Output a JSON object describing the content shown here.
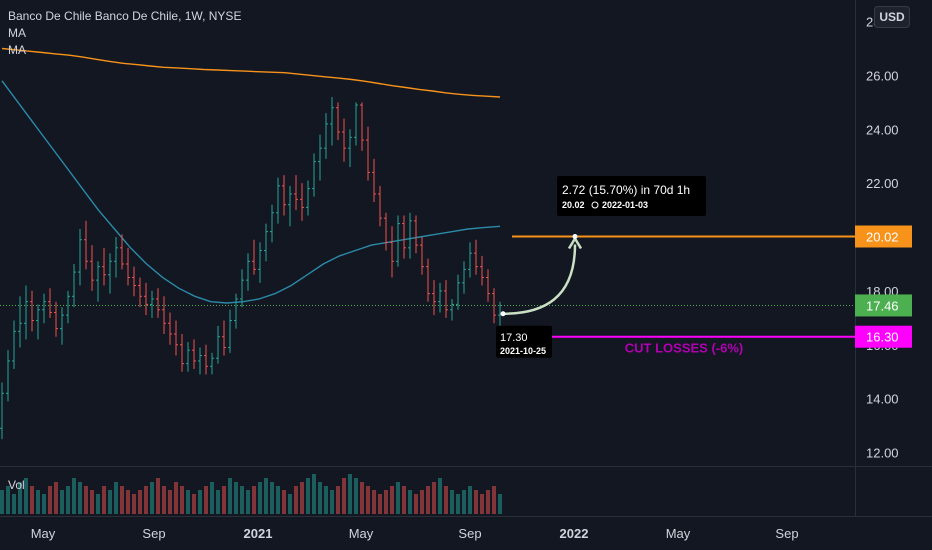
{
  "legend": {
    "title": "Banco De Chile Banco De Chile, 1W, NYSE",
    "ma1": "MA",
    "ma2": "MA"
  },
  "currency_button": "USD",
  "volume_label": "Vol",
  "colors": {
    "background": "#131722",
    "up": "#26a69a",
    "down": "#ef5350",
    "ma_long": "#f7931a",
    "ma_short": "#2a8aa8",
    "target": "#f7931a",
    "stop": "#ff00ff",
    "current": "#4caf50"
  },
  "chart_data": {
    "type": "candlestick",
    "y_axis": {
      "ylim": [
        11.5,
        28.8
      ],
      "ticks": [
        "12.00",
        "14.00",
        "16.00",
        "18.00",
        "20.00",
        "22.00",
        "24.00",
        "26.00",
        "28.00"
      ]
    },
    "x_axis": {
      "ticks": [
        {
          "label": "May",
          "bold": false
        },
        {
          "label": "Sep",
          "bold": false
        },
        {
          "label": "2021",
          "bold": true
        },
        {
          "label": "May",
          "bold": false
        },
        {
          "label": "Sep",
          "bold": false
        },
        {
          "label": "2022",
          "bold": true
        },
        {
          "label": "May",
          "bold": false
        },
        {
          "label": "Sep",
          "bold": false
        }
      ]
    },
    "candles_ohlc": [
      [
        12.9,
        14.6,
        12.5,
        14.2
      ],
      [
        14.2,
        15.8,
        13.9,
        15.4
      ],
      [
        15.4,
        16.9,
        15.1,
        16.5
      ],
      [
        16.5,
        17.8,
        15.9,
        16.8
      ],
      [
        16.8,
        18.2,
        16.2,
        17.6
      ],
      [
        17.6,
        18.0,
        16.5,
        16.9
      ],
      [
        16.9,
        17.5,
        16.2,
        17.3
      ],
      [
        17.3,
        17.9,
        16.8,
        17.6
      ],
      [
        17.6,
        18.1,
        17.0,
        17.2
      ],
      [
        17.2,
        17.6,
        16.3,
        16.6
      ],
      [
        16.6,
        17.4,
        16.0,
        17.1
      ],
      [
        17.1,
        18.0,
        16.8,
        17.8
      ],
      [
        17.8,
        19.0,
        17.4,
        18.7
      ],
      [
        18.7,
        20.3,
        18.2,
        19.9
      ],
      [
        19.9,
        20.6,
        18.8,
        19.1
      ],
      [
        19.1,
        19.7,
        18.0,
        18.4
      ],
      [
        18.4,
        19.1,
        17.6,
        18.9
      ],
      [
        18.9,
        19.6,
        18.2,
        18.6
      ],
      [
        18.6,
        19.4,
        17.9,
        19.1
      ],
      [
        19.1,
        20.0,
        18.5,
        19.6
      ],
      [
        19.6,
        20.1,
        18.8,
        19.0
      ],
      [
        19.0,
        19.6,
        18.2,
        18.5
      ],
      [
        18.5,
        18.9,
        17.8,
        18.2
      ],
      [
        18.2,
        18.5,
        17.4,
        17.8
      ],
      [
        17.8,
        18.3,
        17.1,
        17.5
      ],
      [
        17.5,
        18.0,
        17.0,
        17.7
      ],
      [
        17.7,
        18.1,
        17.0,
        17.3
      ],
      [
        17.3,
        17.8,
        16.4,
        16.8
      ],
      [
        16.8,
        17.2,
        16.0,
        16.4
      ],
      [
        16.4,
        16.9,
        15.6,
        16.0
      ],
      [
        16.0,
        16.4,
        15.0,
        15.3
      ],
      [
        15.3,
        16.1,
        15.0,
        15.8
      ],
      [
        15.8,
        16.2,
        15.1,
        15.4
      ],
      [
        15.4,
        15.9,
        14.9,
        15.6
      ],
      [
        15.6,
        16.0,
        14.9,
        15.2
      ],
      [
        15.2,
        15.7,
        14.9,
        15.5
      ],
      [
        15.5,
        16.7,
        15.3,
        16.3
      ],
      [
        16.3,
        16.9,
        15.6,
        15.9
      ],
      [
        15.9,
        17.3,
        15.7,
        16.9
      ],
      [
        16.9,
        17.9,
        16.6,
        17.7
      ],
      [
        17.7,
        18.8,
        17.4,
        18.4
      ],
      [
        18.4,
        19.4,
        18.0,
        19.1
      ],
      [
        19.1,
        19.9,
        18.6,
        18.8
      ],
      [
        18.8,
        19.8,
        18.3,
        19.5
      ],
      [
        19.5,
        20.5,
        19.1,
        20.2
      ],
      [
        20.2,
        21.2,
        19.8,
        20.9
      ],
      [
        20.9,
        22.2,
        20.5,
        21.9
      ],
      [
        21.9,
        22.3,
        20.8,
        21.2
      ],
      [
        21.2,
        21.9,
        20.4,
        21.6
      ],
      [
        21.6,
        22.3,
        21.0,
        21.4
      ],
      [
        21.4,
        22.0,
        20.6,
        21.1
      ],
      [
        21.1,
        22.1,
        20.8,
        21.8
      ],
      [
        21.8,
        23.1,
        21.5,
        22.8
      ],
      [
        22.8,
        23.8,
        22.1,
        23.3
      ],
      [
        23.3,
        24.6,
        22.9,
        24.2
      ],
      [
        24.2,
        25.2,
        23.4,
        24.8
      ],
      [
        24.8,
        25.0,
        23.6,
        23.9
      ],
      [
        23.9,
        24.4,
        22.8,
        23.3
      ],
      [
        23.3,
        24.0,
        22.6,
        23.7
      ],
      [
        23.7,
        25.0,
        23.4,
        24.9
      ],
      [
        24.9,
        25.0,
        23.2,
        23.6
      ],
      [
        23.6,
        24.1,
        22.1,
        22.4
      ],
      [
        22.4,
        22.9,
        21.3,
        21.6
      ],
      [
        21.6,
        21.9,
        20.4,
        20.7
      ],
      [
        20.7,
        20.9,
        19.5,
        19.8
      ],
      [
        19.8,
        20.4,
        18.5,
        19.1
      ],
      [
        19.1,
        20.8,
        18.9,
        20.5
      ],
      [
        20.5,
        20.8,
        19.2,
        19.6
      ],
      [
        19.6,
        20.9,
        19.2,
        20.6
      ],
      [
        20.6,
        20.8,
        19.4,
        19.7
      ],
      [
        19.7,
        20.0,
        18.6,
        18.9
      ],
      [
        18.9,
        19.2,
        17.6,
        17.9
      ],
      [
        17.9,
        18.4,
        17.1,
        17.6
      ],
      [
        17.6,
        18.3,
        17.2,
        18.0
      ],
      [
        18.0,
        18.4,
        17.0,
        17.3
      ],
      [
        17.3,
        17.7,
        16.9,
        17.5
      ],
      [
        17.5,
        18.6,
        17.3,
        18.3
      ],
      [
        18.3,
        19.1,
        17.9,
        18.8
      ],
      [
        18.8,
        19.8,
        18.5,
        19.4
      ],
      [
        19.4,
        19.9,
        18.6,
        18.9
      ],
      [
        18.9,
        19.3,
        18.2,
        18.5
      ],
      [
        18.5,
        18.8,
        17.6,
        17.9
      ],
      [
        17.9,
        18.1,
        16.8,
        17.1
      ],
      [
        17.1,
        17.6,
        16.7,
        17.46
      ]
    ],
    "volume": [
      6,
      7,
      5,
      8,
      9,
      7,
      6,
      5,
      7,
      8,
      6,
      7,
      9,
      8,
      7,
      6,
      5,
      7,
      6,
      8,
      7,
      6,
      5,
      6,
      7,
      8,
      9,
      7,
      6,
      8,
      7,
      6,
      5,
      6,
      7,
      8,
      6,
      7,
      9,
      8,
      7,
      6,
      7,
      8,
      9,
      8,
      7,
      6,
      5,
      7,
      8,
      9,
      10,
      8,
      7,
      6,
      7,
      9,
      10,
      9,
      8,
      7,
      6,
      5,
      6,
      7,
      8,
      7,
      6,
      5,
      6,
      7,
      8,
      9,
      7,
      6,
      5,
      6,
      7,
      6,
      5,
      6,
      7,
      5
    ],
    "ma_long": [
      27.0,
      26.95,
      26.9,
      26.85,
      26.8,
      26.75,
      26.68,
      26.6,
      26.52,
      26.45,
      26.4,
      26.35,
      26.3,
      26.28,
      26.25,
      26.22,
      26.2,
      26.18,
      26.16,
      26.14,
      26.12,
      26.1,
      26.05,
      26.0,
      25.95,
      25.9,
      25.85,
      25.78,
      25.7,
      25.62,
      25.55,
      25.48,
      25.42,
      25.35,
      25.3,
      25.26,
      25.23,
      25.2
    ],
    "ma_short": [
      25.8,
      25.0,
      24.2,
      23.4,
      22.6,
      21.8,
      21.0,
      20.3,
      19.6,
      19.0,
      18.5,
      18.1,
      17.8,
      17.6,
      17.55,
      17.6,
      17.7,
      17.9,
      18.2,
      18.6,
      19.0,
      19.3,
      19.5,
      19.7,
      19.8,
      19.9,
      20.0,
      20.1,
      20.2,
      20.3,
      20.35,
      20.4
    ],
    "annotations": {
      "current_price": "17.46",
      "target_price": "20.02",
      "stop_price": "16.30",
      "stop_label": "CUT LOSSES (-6%)",
      "entry_label": "17.30",
      "entry_date": "2021-10-25",
      "projection_label": "2.72 (15.70%) in 70d 1h",
      "projection_price": "20.02",
      "projection_date": "2022-01-03"
    }
  }
}
